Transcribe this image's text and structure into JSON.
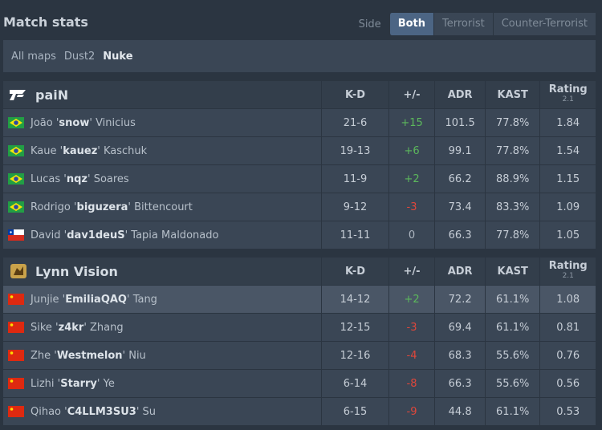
{
  "header": {
    "title": "Match stats",
    "side_label": "Side",
    "side_options": [
      "Both",
      "Terrorist",
      "Counter-Terrorist"
    ],
    "side_active": 0
  },
  "maps": {
    "options": [
      "All maps",
      "Dust2",
      "Nuke"
    ],
    "active": 2
  },
  "columns": [
    "K-D",
    "+/-",
    "ADR",
    "KAST",
    "Rating"
  ],
  "rating_version": "2.1",
  "teams": [
    {
      "name": "paiN",
      "players": [
        {
          "first": "João '",
          "nick": "snow",
          "last": "' Vinicius",
          "kd": "21-6",
          "diff": "+15",
          "adr": "101.5",
          "kast": "77.8%",
          "rating": "1.84"
        },
        {
          "first": "Kaue '",
          "nick": "kauez",
          "last": "' Kaschuk",
          "kd": "19-13",
          "diff": "+6",
          "adr": "99.1",
          "kast": "77.8%",
          "rating": "1.54"
        },
        {
          "first": "Lucas '",
          "nick": "nqz",
          "last": "' Soares",
          "kd": "11-9",
          "diff": "+2",
          "adr": "66.2",
          "kast": "88.9%",
          "rating": "1.15"
        },
        {
          "first": "Rodrigo '",
          "nick": "biguzera",
          "last": "' Bittencourt",
          "kd": "9-12",
          "diff": "-3",
          "adr": "73.4",
          "kast": "83.3%",
          "rating": "1.09"
        },
        {
          "first": "David '",
          "nick": "dav1deuS",
          "last": "' Tapia Maldonado",
          "kd": "11-11",
          "diff": "0",
          "adr": "66.3",
          "kast": "77.8%",
          "rating": "1.05"
        }
      ]
    },
    {
      "name": "Lynn Vision",
      "players": [
        {
          "first": "Junjie '",
          "nick": "EmiliaQAQ",
          "last": "' Tang",
          "kd": "14-12",
          "diff": "+2",
          "adr": "72.2",
          "kast": "61.1%",
          "rating": "1.08"
        },
        {
          "first": "Sike '",
          "nick": "z4kr",
          "last": "' Zhang",
          "kd": "12-15",
          "diff": "-3",
          "adr": "69.4",
          "kast": "61.1%",
          "rating": "0.81"
        },
        {
          "first": "Zhe '",
          "nick": "Westmelon",
          "last": "' Niu",
          "kd": "12-16",
          "diff": "-4",
          "adr": "68.3",
          "kast": "55.6%",
          "rating": "0.76"
        },
        {
          "first": "Lizhi '",
          "nick": "Starry",
          "last": "' Ye",
          "kd": "6-14",
          "diff": "-8",
          "adr": "66.3",
          "kast": "55.6%",
          "rating": "0.56"
        },
        {
          "first": "Qihao '",
          "nick": "C4LLM3SU3",
          "last": "' Su",
          "kd": "6-15",
          "diff": "-9",
          "adr": "44.8",
          "kast": "61.1%",
          "rating": "0.53"
        }
      ]
    }
  ]
}
